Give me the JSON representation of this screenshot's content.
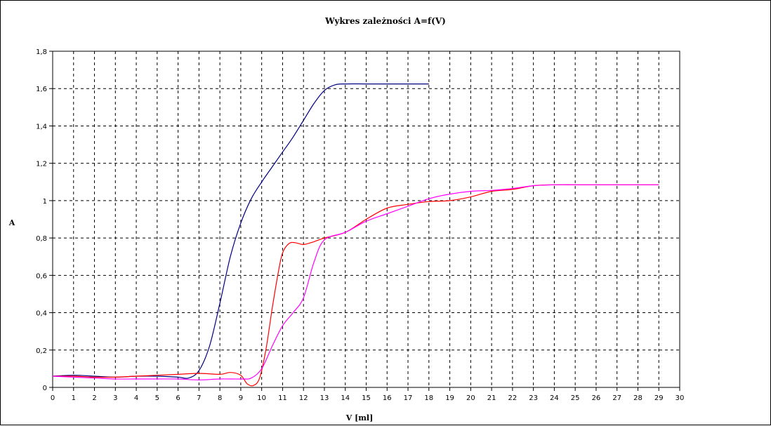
{
  "chart_data": {
    "type": "line",
    "title": "Wykres zależności  A=f(V)",
    "xlabel": "V [ml]",
    "ylabel": "A",
    "xlim": [
      0,
      30
    ],
    "ylim": [
      0,
      1.8
    ],
    "x_ticks": [
      0,
      1,
      2,
      3,
      4,
      5,
      6,
      7,
      8,
      9,
      10,
      11,
      12,
      13,
      14,
      15,
      16,
      17,
      18,
      19,
      20,
      21,
      22,
      23,
      24,
      25,
      26,
      27,
      28,
      29,
      30
    ],
    "x_tick_labels": [
      "0",
      "1",
      "2",
      "3",
      "4",
      "5",
      "6",
      "7",
      "8",
      "9",
      "10",
      "11",
      "12",
      "13",
      "14",
      "15",
      "16",
      "17",
      "18",
      "19",
      "20",
      "21",
      "22",
      "23",
      "24",
      "25",
      "26",
      "27",
      "28",
      "29",
      "30"
    ],
    "y_ticks": [
      0,
      0.2,
      0.4,
      0.6,
      0.8,
      1.0,
      1.2,
      1.4,
      1.6,
      1.8
    ],
    "y_tick_labels": [
      "0",
      "0,2",
      "0,4",
      "0,6",
      "0,8",
      "1",
      "1,2",
      "1,4",
      "1,6",
      "1,8"
    ],
    "grid": true,
    "legend": "none",
    "series": [
      {
        "color": "#000080",
        "x": [
          0,
          1,
          2,
          3,
          4,
          5,
          6,
          6.5,
          7,
          7.5,
          8,
          8.5,
          9,
          9.5,
          10,
          10.5,
          11,
          11.5,
          12,
          12.5,
          13,
          13.5,
          14,
          15,
          16,
          17,
          18
        ],
        "y": [
          0.06,
          0.065,
          0.06,
          0.055,
          0.06,
          0.06,
          0.055,
          0.05,
          0.09,
          0.22,
          0.45,
          0.7,
          0.88,
          1.01,
          1.1,
          1.18,
          1.26,
          1.34,
          1.43,
          1.52,
          1.59,
          1.62,
          1.625,
          1.625,
          1.625,
          1.625,
          1.625
        ]
      },
      {
        "color": "#ff0000",
        "x": [
          0,
          1,
          2,
          3,
          4,
          5,
          6,
          7,
          8,
          8.5,
          9,
          9.3,
          9.6,
          9.9,
          10.2,
          10.5,
          10.8,
          11,
          11.3,
          11.6,
          12,
          12.5,
          13,
          14,
          15,
          16,
          17,
          18,
          19,
          20,
          21,
          22,
          23,
          24,
          25,
          26,
          27,
          28,
          29
        ],
        "y": [
          0.06,
          0.06,
          0.055,
          0.055,
          0.06,
          0.065,
          0.07,
          0.075,
          0.07,
          0.08,
          0.065,
          0.02,
          0.01,
          0.05,
          0.2,
          0.42,
          0.62,
          0.72,
          0.77,
          0.775,
          0.765,
          0.78,
          0.8,
          0.83,
          0.9,
          0.96,
          0.98,
          0.995,
          1.0,
          1.02,
          1.05,
          1.06,
          1.08,
          1.085,
          1.085,
          1.085,
          1.085,
          1.085,
          1.085
        ]
      },
      {
        "color": "#ff00ff",
        "x": [
          0,
          1,
          2,
          3,
          4,
          5,
          6,
          7,
          8,
          9,
          9.5,
          10,
          10.5,
          11,
          11.5,
          12,
          12.5,
          13,
          14,
          15,
          16,
          17,
          18,
          19,
          20,
          21,
          22,
          23,
          24,
          25,
          26,
          27,
          28,
          29
        ],
        "y": [
          0.06,
          0.055,
          0.05,
          0.045,
          0.045,
          0.045,
          0.045,
          0.04,
          0.045,
          0.045,
          0.05,
          0.1,
          0.22,
          0.33,
          0.4,
          0.48,
          0.67,
          0.79,
          0.83,
          0.89,
          0.93,
          0.97,
          1.01,
          1.035,
          1.05,
          1.055,
          1.065,
          1.08,
          1.085,
          1.085,
          1.085,
          1.085,
          1.085,
          1.085
        ]
      }
    ]
  }
}
